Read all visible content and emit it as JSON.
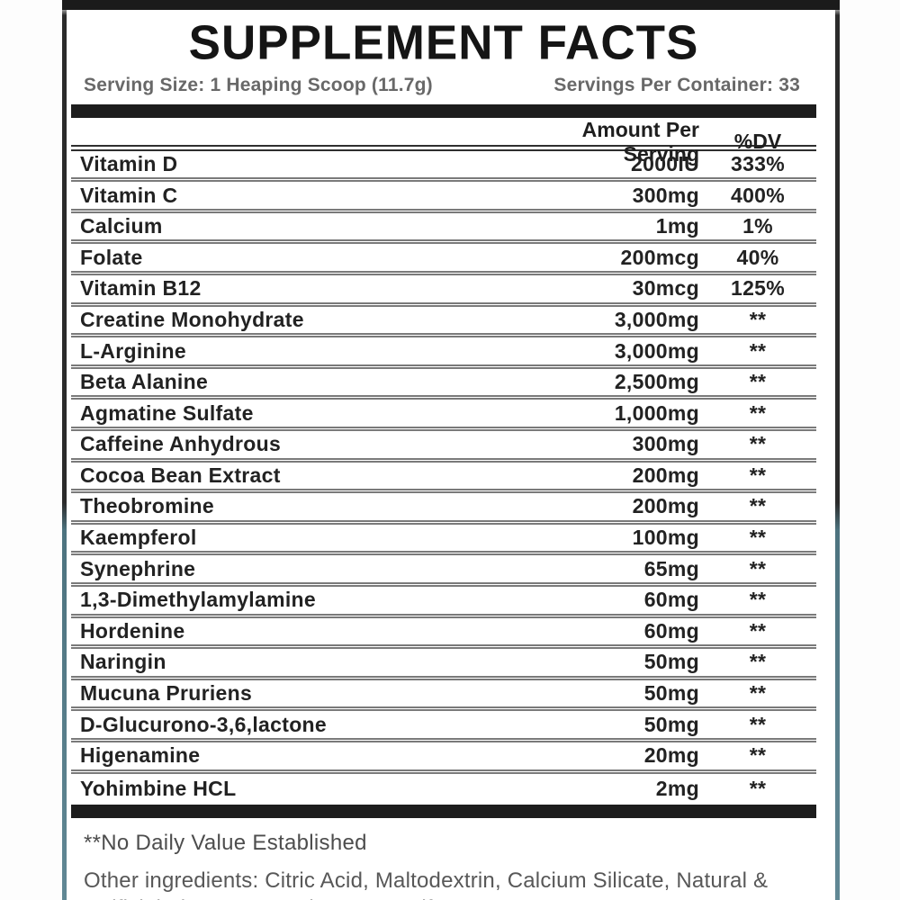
{
  "label": {
    "title": "SUPPLEMENT FACTS",
    "serving_size": "Serving Size: 1 Heaping Scoop (11.7g)",
    "servings_per_container": "Servings Per Container: 33",
    "columns": {
      "amount": "Amount Per Serving",
      "dv": "%DV"
    },
    "rows": [
      {
        "name": "Vitamin D",
        "amount": "2000IU",
        "dv": "333%"
      },
      {
        "name": "Vitamin C",
        "amount": "300mg",
        "dv": "400%"
      },
      {
        "name": "Calcium",
        "amount": "1mg",
        "dv": "1%"
      },
      {
        "name": "Folate",
        "amount": "200mcg",
        "dv": "40%"
      },
      {
        "name": "Vitamin B12",
        "amount": "30mcg",
        "dv": "125%"
      },
      {
        "name": "Creatine Monohydrate",
        "amount": "3,000mg",
        "dv": "**"
      },
      {
        "name": "L-Arginine",
        "amount": "3,000mg",
        "dv": "**"
      },
      {
        "name": "Beta Alanine",
        "amount": "2,500mg",
        "dv": "**"
      },
      {
        "name": "Agmatine Sulfate",
        "amount": "1,000mg",
        "dv": "**"
      },
      {
        "name": "Caffeine Anhydrous",
        "amount": "300mg",
        "dv": "**"
      },
      {
        "name": "Cocoa Bean Extract",
        "amount": "200mg",
        "dv": "**"
      },
      {
        "name": "Theobromine",
        "amount": "200mg",
        "dv": "**"
      },
      {
        "name": "Kaempferol",
        "amount": "100mg",
        "dv": "**"
      },
      {
        "name": "Synephrine",
        "amount": "65mg",
        "dv": "**"
      },
      {
        "name": "1,3-Dimethylamylamine",
        "amount": "60mg",
        "dv": "**"
      },
      {
        "name": "Hordenine",
        "amount": "60mg",
        "dv": "**"
      },
      {
        "name": "Naringin",
        "amount": "50mg",
        "dv": "**"
      },
      {
        "name": "Mucuna Pruriens",
        "amount": "50mg",
        "dv": "**"
      },
      {
        "name": "D-Glucurono-3,6,lactone",
        "amount": "50mg",
        "dv": "**"
      },
      {
        "name": "Higenamine",
        "amount": "20mg",
        "dv": "**"
      },
      {
        "name": "Yohimbine HCL",
        "amount": "2mg",
        "dv": "**"
      }
    ],
    "footnote": "**No Daily Value Established",
    "other_ingredients": "Other ingredients: Citric Acid, Maltodextrin, Calcium Silicate, Natural & Artificial Flavors, Sucralose, Acesulfame-K.",
    "colors": {
      "bar_black": "#1d1d1d",
      "accent_blue": "#2d6b99",
      "accent_navy": "#0e2a45",
      "border_teal": "#628996",
      "text_gray": "#686868"
    }
  }
}
